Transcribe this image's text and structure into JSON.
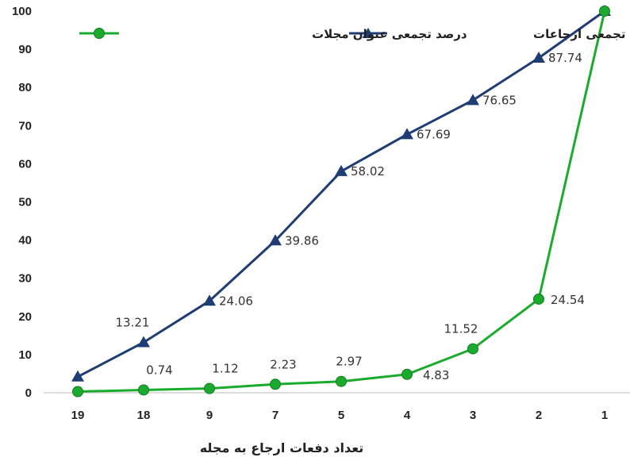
{
  "chart_data": {
    "type": "line",
    "categories": [
      "19",
      "18",
      "9",
      "7",
      "5",
      "4",
      "3",
      "2",
      "1"
    ],
    "series": [
      {
        "name": "درصد تجمعی ارجاعات",
        "color": "#1f3c74",
        "marker": "triangle",
        "values": [
          4.2,
          13.21,
          24.06,
          39.86,
          58.02,
          67.69,
          76.65,
          87.74,
          100
        ],
        "labels": [
          "",
          "13.21",
          "24.06",
          "39.86",
          "58.02",
          "67.69",
          "76.65",
          "87.74",
          ""
        ]
      },
      {
        "name": "درصد تجمعی عنوان مجلات",
        "color": "#1aab2e",
        "marker": "circle",
        "values": [
          0.3,
          0.74,
          1.12,
          2.23,
          2.97,
          4.83,
          11.52,
          24.54,
          100
        ],
        "labels": [
          "",
          "0.74",
          "1.12",
          "2.23",
          "2.97",
          "4.83",
          "11.52",
          "24.54",
          ""
        ]
      }
    ],
    "yticks": [
      "0",
      "10",
      "20",
      "30",
      "40",
      "50",
      "60",
      "70",
      "80",
      "90",
      "100"
    ],
    "ylim": [
      0,
      100
    ],
    "xlabel": "تعداد دفعات ارجاع به مجله",
    "ylabel": "",
    "title": "",
    "grid": false,
    "legend": "top"
  }
}
